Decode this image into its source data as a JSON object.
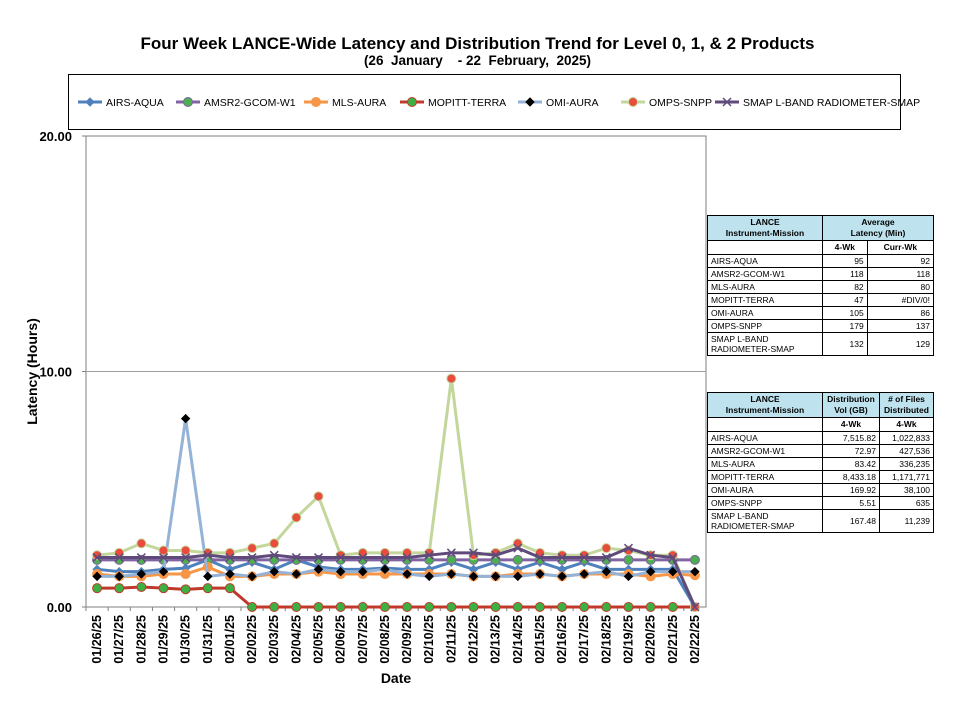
{
  "title": "Four Week LANCE-Wide Latency and Distribution Trend for Level 0, 1, & 2 Products",
  "subtitle": "(26  January    - 22  February,  2025)",
  "chart_data": {
    "type": "line",
    "xlabel": "Date",
    "ylabel": "Latency (Hours)",
    "ylim": [
      0,
      20
    ],
    "yticks": [
      "0.00",
      "10.00",
      "20.00"
    ],
    "legend_position": "top",
    "categories": [
      "01/26/25",
      "01/27/25",
      "01/28/25",
      "01/29/25",
      "01/30/25",
      "01/31/25",
      "02/01/25",
      "02/02/25",
      "02/03/25",
      "02/04/25",
      "02/05/25",
      "02/06/25",
      "02/07/25",
      "02/08/25",
      "02/09/25",
      "02/10/25",
      "02/11/25",
      "02/12/25",
      "02/13/25",
      "02/14/25",
      "02/15/25",
      "02/16/25",
      "02/17/25",
      "02/18/25",
      "02/19/25",
      "02/20/25",
      "02/21/25",
      "02/22/25"
    ],
    "series": [
      {
        "name": "AIRS-AQUA",
        "color": "#4f81bd",
        "marker": "diamond",
        "values": [
          1.6,
          1.5,
          1.5,
          1.6,
          1.65,
          2.0,
          1.6,
          1.9,
          1.6,
          2.0,
          1.7,
          1.6,
          1.6,
          1.65,
          1.6,
          1.6,
          1.9,
          1.6,
          1.9,
          1.6,
          1.9,
          1.6,
          1.9,
          1.6,
          1.6,
          1.6,
          1.6,
          0.0
        ]
      },
      {
        "name": "AMSR2-GCOM-W1",
        "color": "#8064a2",
        "marker": "circle",
        "values": [
          2.0,
          2.0,
          2.0,
          2.0,
          2.0,
          2.0,
          2.0,
          2.0,
          2.0,
          2.0,
          2.0,
          2.0,
          2.0,
          2.0,
          2.0,
          2.0,
          2.0,
          2.0,
          2.0,
          2.0,
          2.0,
          2.0,
          2.0,
          2.0,
          2.0,
          2.0,
          2.0,
          2.0
        ]
      },
      {
        "name": "MLS-AURA",
        "color": "#f79646",
        "marker": "circle",
        "values": [
          1.4,
          1.3,
          1.3,
          1.4,
          1.4,
          1.7,
          1.3,
          1.3,
          1.4,
          1.4,
          1.5,
          1.4,
          1.4,
          1.4,
          1.4,
          1.4,
          1.4,
          1.3,
          1.3,
          1.4,
          1.4,
          1.3,
          1.4,
          1.4,
          1.4,
          1.3,
          1.4,
          1.35
        ]
      },
      {
        "name": "MOPITT-TERRA",
        "color": "#c0392b",
        "marker": "circle",
        "values": [
          0.8,
          0.8,
          0.85,
          0.8,
          0.75,
          0.8,
          0.8,
          0.0,
          0.0,
          0.0,
          0.0,
          0.0,
          0.0,
          0.0,
          0.0,
          0.0,
          0.0,
          0.0,
          0.0,
          0.0,
          0.0,
          0.0,
          0.0,
          0.0,
          0.0,
          0.0,
          0.0,
          0.0
        ]
      },
      {
        "name": "OMI-AURA",
        "color": "#95b3d7",
        "marker": "diamond",
        "values": [
          1.3,
          1.3,
          1.4,
          1.5,
          8.0,
          1.3,
          1.4,
          1.3,
          1.5,
          1.4,
          1.6,
          1.5,
          1.5,
          1.6,
          1.4,
          1.3,
          1.4,
          1.3,
          1.3,
          1.3,
          1.4,
          1.3,
          1.4,
          1.5,
          1.3,
          1.5,
          1.5,
          1.5
        ]
      },
      {
        "name": "OMPS-SNPP",
        "color": "#c3d69b",
        "marker": "circle",
        "values": [
          2.2,
          2.3,
          2.7,
          2.4,
          2.4,
          2.3,
          2.3,
          2.5,
          2.7,
          3.8,
          4.7,
          2.2,
          2.3,
          2.3,
          2.3,
          2.3,
          9.7,
          2.2,
          2.3,
          2.7,
          2.3,
          2.2,
          2.2,
          2.5,
          2.4,
          2.2,
          2.2,
          0.0
        ]
      },
      {
        "name": "SMAP L-BAND RADIOMETER-SMAP",
        "color": "#604a7b",
        "marker": "x",
        "values": [
          2.1,
          2.1,
          2.1,
          2.1,
          2.1,
          2.2,
          2.1,
          2.1,
          2.2,
          2.1,
          2.1,
          2.1,
          2.1,
          2.1,
          2.1,
          2.2,
          2.3,
          2.3,
          2.2,
          2.5,
          2.1,
          2.1,
          2.1,
          2.1,
          2.5,
          2.2,
          2.1,
          0.0
        ]
      }
    ]
  },
  "latency_table": {
    "header_left": [
      "LANCE",
      "Instrument-Mission"
    ],
    "header_right": [
      "Average",
      "Latency (Min)"
    ],
    "sub_headers": [
      "4-Wk",
      "Curr-Wk"
    ],
    "rows": [
      {
        "name": "AIRS-AQUA",
        "a": "95",
        "b": "92"
      },
      {
        "name": "AMSR2-GCOM-W1",
        "a": "118",
        "b": "118"
      },
      {
        "name": "MLS-AURA",
        "a": "82",
        "b": "80"
      },
      {
        "name": "MOPITT-TERRA",
        "a": "47",
        "b": "#DIV/0!"
      },
      {
        "name": "OMI-AURA",
        "a": "105",
        "b": "86"
      },
      {
        "name": "OMPS-SNPP",
        "a": "179",
        "b": "137"
      },
      {
        "name": "SMAP L-BAND RADIOMETER-SMAP",
        "a": "132",
        "b": "129"
      }
    ]
  },
  "distribution_table": {
    "header_left": [
      "LANCE",
      "Instrument-Mission"
    ],
    "header_mid": [
      "Distribution",
      "Vol (GB)"
    ],
    "header_right": [
      "# of Files",
      "Distributed"
    ],
    "sub_headers": [
      "4-Wk",
      "4-Wk"
    ],
    "rows": [
      {
        "name": "AIRS-AQUA",
        "a": "7,515.82",
        "b": "1,022,833"
      },
      {
        "name": "AMSR2-GCOM-W1",
        "a": "72.97",
        "b": "427,536"
      },
      {
        "name": "MLS-AURA",
        "a": "83.42",
        "b": "336,235"
      },
      {
        "name": "MOPITT-TERRA",
        "a": "8,433.18",
        "b": "1,171,771"
      },
      {
        "name": "OMI-AURA",
        "a": "169.92",
        "b": "38,100"
      },
      {
        "name": "OMPS-SNPP",
        "a": "5.51",
        "b": "635"
      },
      {
        "name": "SMAP L-BAND RADIOMETER-SMAP",
        "a": "167.48",
        "b": "11,239"
      }
    ]
  }
}
